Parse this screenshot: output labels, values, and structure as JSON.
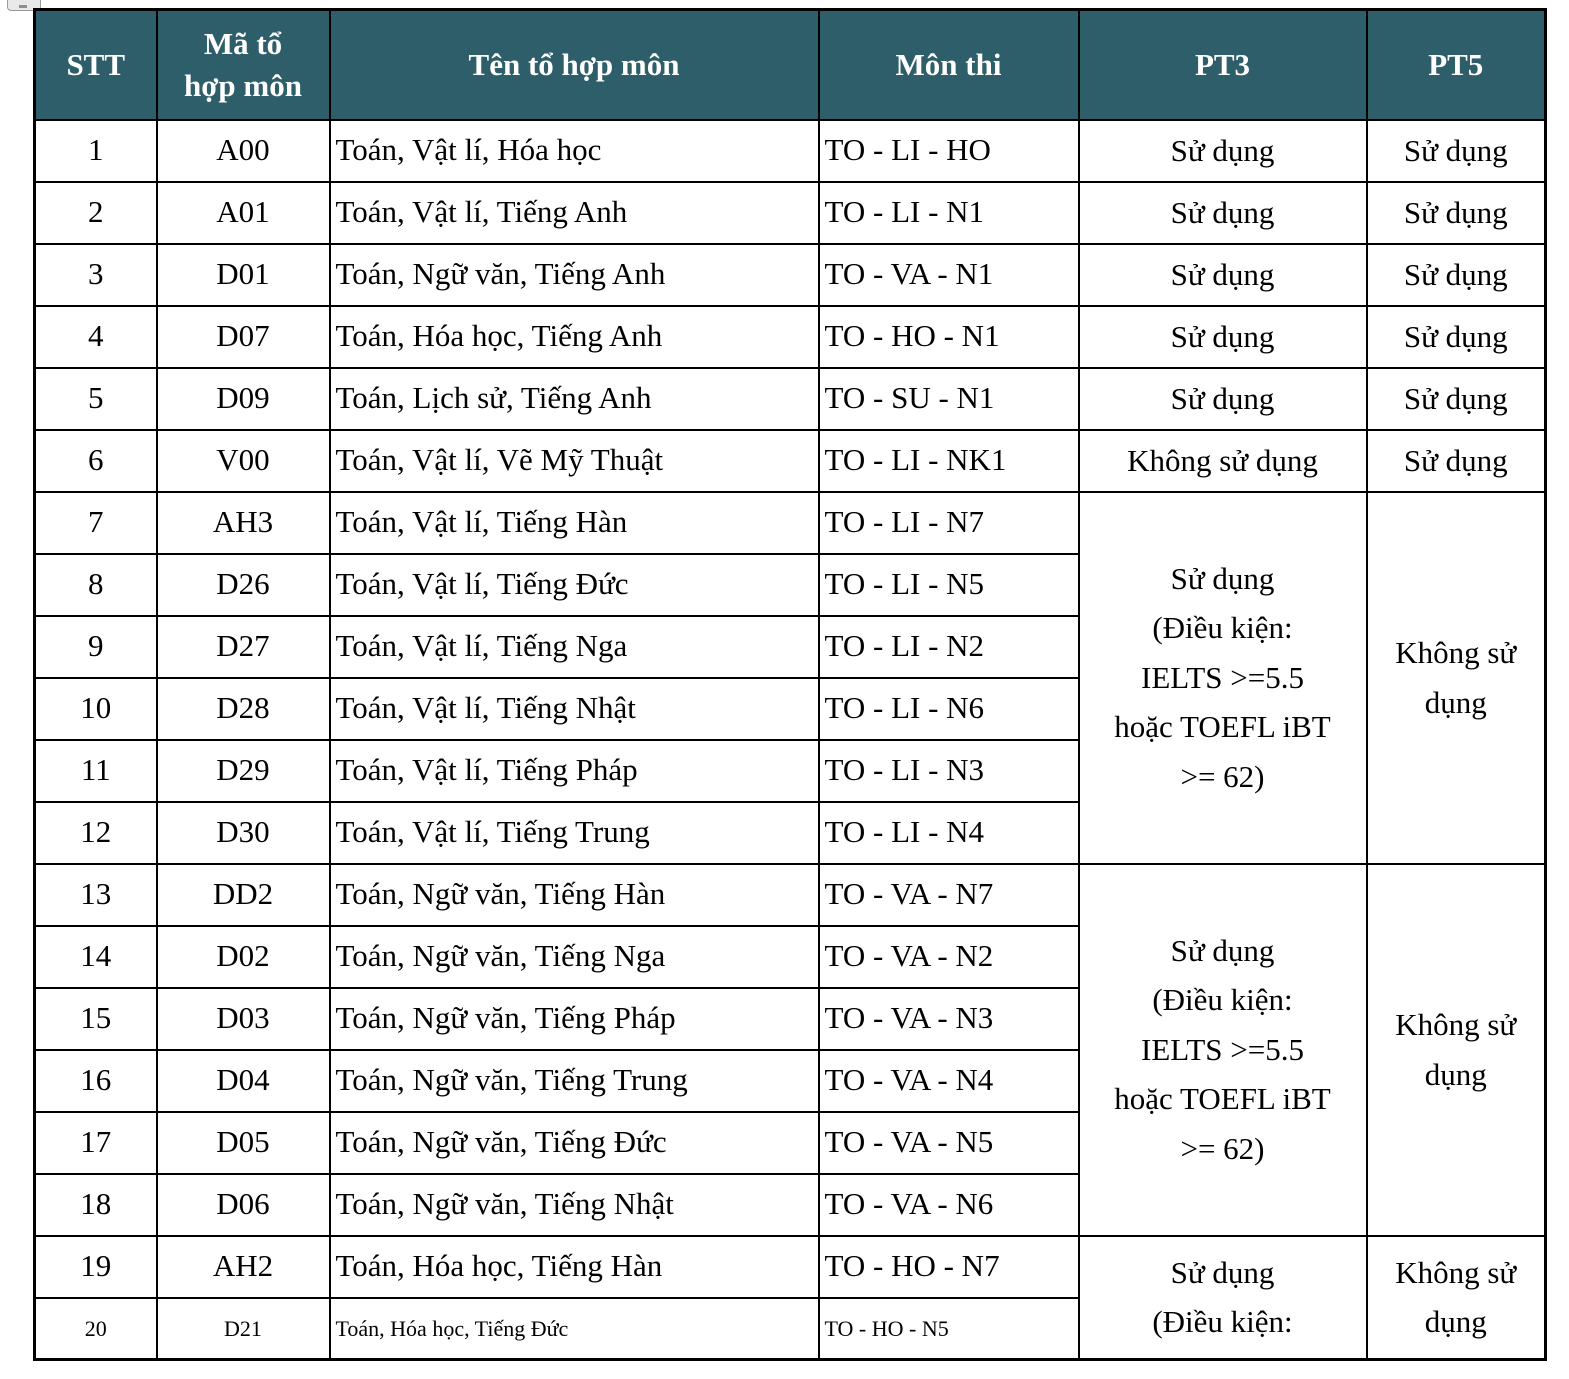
{
  "page": {
    "background_color": "#ffffff"
  },
  "table": {
    "header_bg": "#2e5e69",
    "header_text_color": "#ffffff",
    "columns": [
      {
        "key": "stt",
        "label": "STT"
      },
      {
        "key": "ma",
        "label": "Mã tổ\nhợp môn"
      },
      {
        "key": "ten",
        "label": "Tên tổ hợp môn"
      },
      {
        "key": "mon",
        "label": "Môn thi"
      },
      {
        "key": "pt3",
        "label": "PT3"
      },
      {
        "key": "pt5",
        "label": "PT5"
      }
    ],
    "rows": [
      {
        "stt": "1",
        "ma": "A00",
        "ten": "Toán, Vật lí, Hóa học",
        "mon": "TO - LI - HO",
        "pt3": {
          "text": "Sử dụng",
          "rowspan": 1
        },
        "pt5": {
          "text": "Sử dụng",
          "rowspan": 1
        }
      },
      {
        "stt": "2",
        "ma": "A01",
        "ten": "Toán, Vật lí, Tiếng Anh",
        "mon": "TO - LI - N1",
        "pt3": {
          "text": "Sử dụng",
          "rowspan": 1
        },
        "pt5": {
          "text": "Sử dụng",
          "rowspan": 1
        }
      },
      {
        "stt": "3",
        "ma": "D01",
        "ten": "Toán, Ngữ văn, Tiếng Anh",
        "mon": "TO - VA - N1",
        "pt3": {
          "text": "Sử dụng",
          "rowspan": 1
        },
        "pt5": {
          "text": "Sử dụng",
          "rowspan": 1
        }
      },
      {
        "stt": "4",
        "ma": "D07",
        "ten": "Toán, Hóa học, Tiếng Anh",
        "mon": "TO - HO - N1",
        "pt3": {
          "text": "Sử dụng",
          "rowspan": 1
        },
        "pt5": {
          "text": "Sử dụng",
          "rowspan": 1
        }
      },
      {
        "stt": "5",
        "ma": "D09",
        "ten": "Toán, Lịch sử, Tiếng Anh",
        "mon": "TO - SU - N1",
        "pt3": {
          "text": "Sử dụng",
          "rowspan": 1
        },
        "pt5": {
          "text": "Sử dụng",
          "rowspan": 1
        }
      },
      {
        "stt": "6",
        "ma": "V00",
        "ten": "Toán, Vật lí, Vẽ Mỹ Thuật",
        "mon": "TO - LI - NK1",
        "pt3": {
          "text": "Không sử dụng",
          "rowspan": 1
        },
        "pt5": {
          "text": "Sử dụng",
          "rowspan": 1
        }
      },
      {
        "stt": "7",
        "ma": "AH3",
        "ten": "Toán, Vật lí, Tiếng Hàn",
        "mon": "TO - LI - N7",
        "pt3": {
          "text": "Sử dụng\n(Điều kiện:\nIELTS >=5.5\nhoặc TOEFL iBT\n>= 62)",
          "rowspan": 6
        },
        "pt5": {
          "text": "Không sử dụng",
          "rowspan": 6
        }
      },
      {
        "stt": "8",
        "ma": "D26",
        "ten": "Toán, Vật lí, Tiếng Đức",
        "mon": "TO - LI - N5"
      },
      {
        "stt": "9",
        "ma": "D27",
        "ten": "Toán, Vật lí, Tiếng Nga",
        "mon": "TO - LI - N2"
      },
      {
        "stt": "10",
        "ma": "D28",
        "ten": "Toán, Vật lí, Tiếng Nhật",
        "mon": "TO - LI - N6"
      },
      {
        "stt": "11",
        "ma": "D29",
        "ten": "Toán, Vật lí, Tiếng Pháp",
        "mon": "TO - LI - N3"
      },
      {
        "stt": "12",
        "ma": "D30",
        "ten": "Toán, Vật lí, Tiếng Trung",
        "mon": "TO - LI - N4"
      },
      {
        "stt": "13",
        "ma": "DD2",
        "ten": "Toán, Ngữ văn, Tiếng Hàn",
        "mon": "TO - VA - N7",
        "pt3": {
          "text": "Sử dụng\n(Điều kiện:\nIELTS >=5.5\nhoặc TOEFL iBT\n>= 62)",
          "rowspan": 6
        },
        "pt5": {
          "text": "Không sử dụng",
          "rowspan": 6
        }
      },
      {
        "stt": "14",
        "ma": "D02",
        "ten": "Toán, Ngữ văn, Tiếng Nga",
        "mon": "TO - VA - N2"
      },
      {
        "stt": "15",
        "ma": "D03",
        "ten": "Toán, Ngữ văn, Tiếng Pháp",
        "mon": "TO - VA - N3"
      },
      {
        "stt": "16",
        "ma": "D04",
        "ten": "Toán, Ngữ văn, Tiếng Trung",
        "mon": "TO - VA - N4"
      },
      {
        "stt": "17",
        "ma": "D05",
        "ten": "Toán, Ngữ văn, Tiếng Đức",
        "mon": "TO - VA - N5"
      },
      {
        "stt": "18",
        "ma": "D06",
        "ten": "Toán, Ngữ văn, Tiếng Nhật",
        "mon": "TO - VA - N6"
      },
      {
        "stt": "19",
        "ma": "AH2",
        "ten": "Toán, Hóa học, Tiếng Hàn",
        "mon": "TO - HO - N7",
        "pt3": {
          "text": "Sử dụng\n(Điều kiện:",
          "rowspan": 2
        },
        "pt5": {
          "text": "Không sử dụng",
          "rowspan": 2
        }
      },
      {
        "stt": "20",
        "ma": "D21",
        "ten": "Toán, Hóa học, Tiếng Đức",
        "mon": "TO - HO - N5",
        "small": true
      }
    ]
  }
}
